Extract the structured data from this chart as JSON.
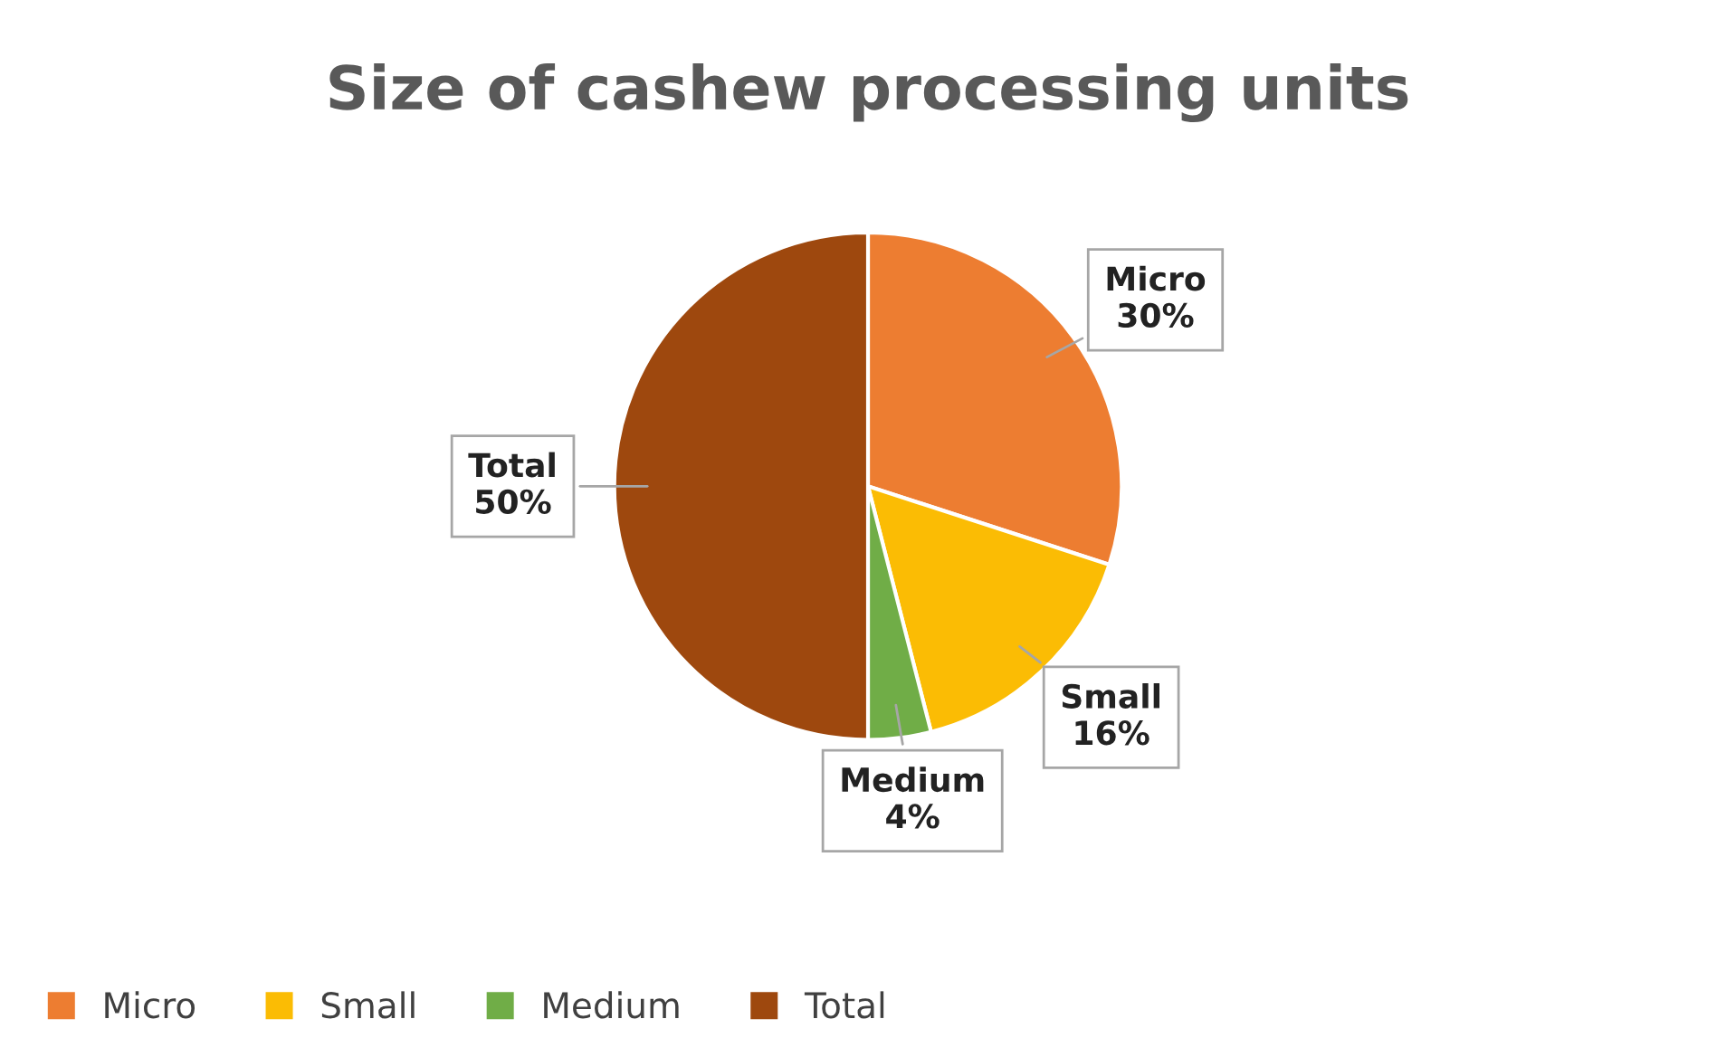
{
  "chart_data": {
    "type": "pie",
    "title": "Size of cashew processing units",
    "categories": [
      "Micro",
      "Small",
      "Medium",
      "Total"
    ],
    "values": [
      30,
      16,
      4,
      50
    ],
    "colors": [
      "#ed7d31",
      "#fbbc04",
      "#70ad47",
      "#9e480e"
    ],
    "value_labels": [
      "30%",
      "16%",
      "4%",
      "50%"
    ],
    "legend": "bottom left"
  }
}
